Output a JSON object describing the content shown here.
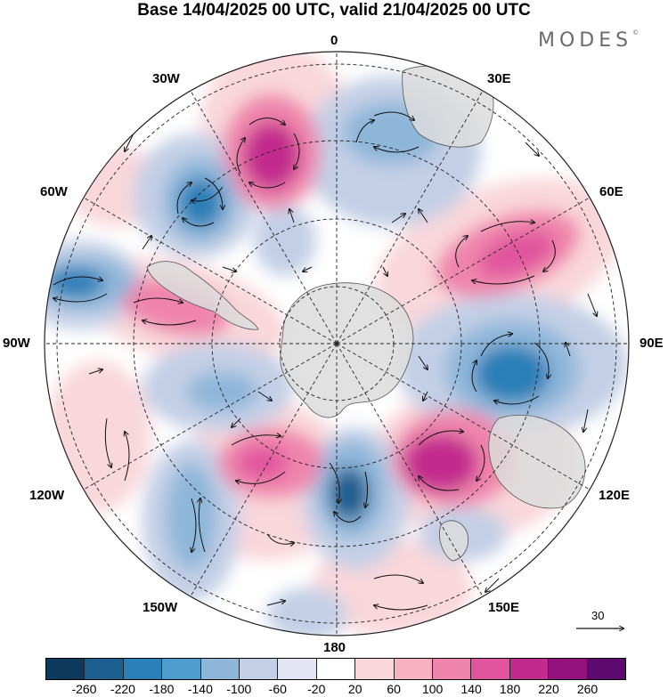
{
  "title": "Base 14/04/2025 00 UTC, valid 21/04/2025 00 UTC",
  "brand": "MODES",
  "brand_mark": "©",
  "longitude_labels": {
    "top": "0",
    "bottom": "180",
    "left": "90W",
    "right": "90E",
    "upper_left_1": "30W",
    "upper_left_2": "60W",
    "lower_left_1": "120W",
    "lower_left_2": "150W",
    "upper_right_1": "30E",
    "upper_right_2": "60E",
    "lower_right_1": "120E",
    "lower_right_2": "150E"
  },
  "reference_vector_label": "30",
  "colorbar": {
    "colors": [
      "#0d3a5c",
      "#1a5f8f",
      "#2a7fb8",
      "#4e9ccc",
      "#8eb6d9",
      "#c3cfe6",
      "#e4e5f2",
      "#ffffff",
      "#f9d7db",
      "#f6b2c0",
      "#ef85ac",
      "#e0559e",
      "#c22b8d",
      "#93117a",
      "#5d0a6e"
    ],
    "tick_labels": [
      "-260",
      "-220",
      "-180",
      "-140",
      "-100",
      "-60",
      "-20",
      "20",
      "60",
      "100",
      "140",
      "180",
      "220",
      "260"
    ]
  },
  "field_colors": {
    "strong_negative": "#2a7fb8",
    "moderate_negative": "#8eb6d9",
    "weak_negative": "#c3cfe6",
    "weak_positive": "#f9d7db",
    "moderate_positive": "#ef85ac",
    "strong_positive": "#c22b8d",
    "land": "#dcdcdc"
  }
}
